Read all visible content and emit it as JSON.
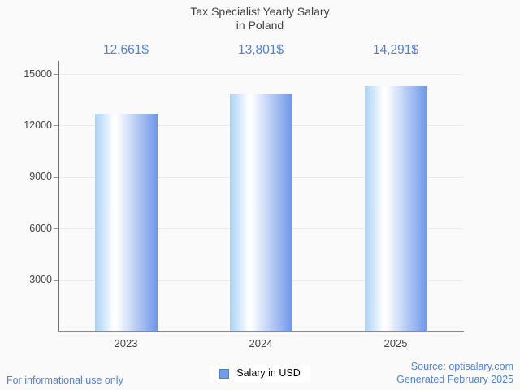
{
  "chart_data": {
    "type": "bar",
    "title": "Tax Specialist Yearly Salary in Poland",
    "title_lines": [
      "Tax Specialist Yearly Salary",
      "in Poland"
    ],
    "categories": [
      "2023",
      "2024",
      "2025"
    ],
    "values": [
      12661,
      13801,
      14291
    ],
    "value_labels": [
      "12,661$",
      "13,801$",
      "14,291$"
    ],
    "series_name": "Salary in USD",
    "xlabel": "",
    "ylabel": "",
    "ylim": [
      0,
      15000
    ],
    "yticks": [
      3000,
      6000,
      9000,
      12000,
      15000
    ],
    "grid": true,
    "legend_position": "bottom-center"
  },
  "footer": {
    "disclaimer": "For informational use only",
    "source_line1": "Source: optisalary.com",
    "source_line2": "Generated February 2025"
  },
  "colors": {
    "background": "#fafafa",
    "title_text": "#424242",
    "accent_text": "#5180dc",
    "axis_text": "#424242",
    "bar_gradient_left": "#a9d2f7",
    "bar_gradient_mid": "#ffffff",
    "bar_gradient_right": "#6d97e8",
    "legend_swatch_fill": "#6d9eeb",
    "legend_swatch_border": "#4e7fd0",
    "gridline": "#e9e9e9",
    "axis_line": "#6f6f6f"
  }
}
